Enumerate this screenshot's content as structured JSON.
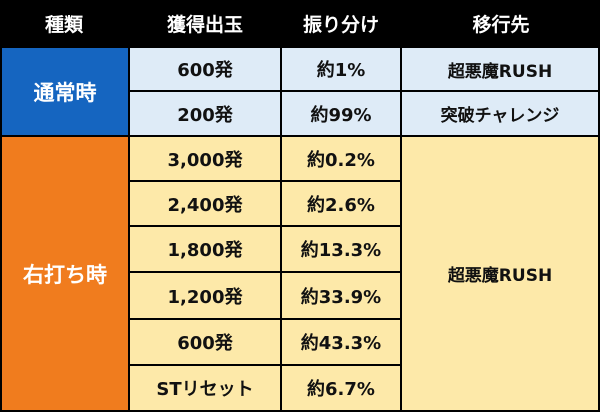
{
  "headers": {
    "type": "種類",
    "payout": "獲得出玉",
    "ratio": "振り分け",
    "destination": "移行先"
  },
  "normal": {
    "label": "通常時",
    "rows": [
      {
        "payout": "600発",
        "ratio": "約1%",
        "destination": "超悪魔RUSH"
      },
      {
        "payout": "200発",
        "ratio": "約99%",
        "destination": "突破チャレンジ"
      }
    ]
  },
  "rush": {
    "label": "右打ち時",
    "destination": "超悪魔RUSH",
    "rows": [
      {
        "payout": "3,000発",
        "ratio": "約0.2%"
      },
      {
        "payout": "2,400発",
        "ratio": "約2.6%"
      },
      {
        "payout": "1,800発",
        "ratio": "約13.3%"
      },
      {
        "payout": "1,200発",
        "ratio": "約33.9%"
      },
      {
        "payout": "600発",
        "ratio": "約43.3%"
      },
      {
        "payout": "STリセット",
        "ratio": "約6.7%"
      }
    ]
  },
  "colors": {
    "header_bg": "#000000",
    "normal_label_bg": "#1565c0",
    "rush_label_bg": "#f07c1e",
    "normal_row_bg": "#deebf7",
    "rush_row_bg": "#fde9a9"
  }
}
